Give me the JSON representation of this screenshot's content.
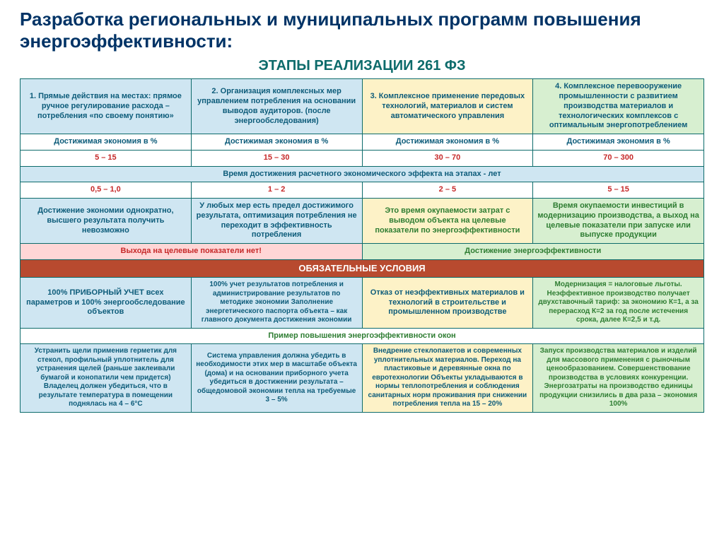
{
  "title": "Разработка региональных и муниципальных программ повышения энергоэффективности:",
  "subtitle": "ЭТАПЫ РЕАЛИЗАЦИИ 261 ФЗ",
  "stages": [
    "1. Прямые действия на местах: прямое ручное регулирование расхода – потребления «по своему понятию»",
    "2. Организация комплексных мер управлением потребления на основании выводов аудиторов. (после энергообследования)",
    "3. Комплексное применение передовых технологий, материалов и систем автоматического управления",
    "4. Комплексное перевооружение промышленности с развитием производства материалов и технологических комплексов с оптимальным энергопотреблением"
  ],
  "economy_label": "Достижимая экономия в %",
  "economy": [
    "5 – 15",
    "15 – 30",
    "30 – 70",
    "70 – 300"
  ],
  "time_header": "Время достижения расчетного экономического эффекта на этапах - лет",
  "time": [
    "0,5 – 1,0",
    "1 – 2",
    "2 – 5",
    "5 – 15"
  ],
  "desc": [
    "Достижение экономии однократно, высшего результата получить невозможно",
    "У любых мер есть предел достижимого результата, оптимизация потребления не переходит в эффективность потребления",
    "Это время окупаемости затрат с выводом объекта на целевые показатели по энергоэффективности",
    "Время окупаемости инвестиций в модернизацию производства, а выход на целевые показатели при запуске или выпуске продукции"
  ],
  "no_target": "Выхода на целевые показатели нет!",
  "target_ok": "Достижение энергоэффективности",
  "mandatory": "ОБЯЗАТЕЛЬНЫЕ УСЛОВИЯ",
  "conditions": [
    "100% ПРИБОРНЫЙ УЧЕТ всех параметров и 100% энергообследование объектов",
    "100% учет результатов потребления и администрирование результатов по методике экономии\nЗаполнение энергетического паспорта объекта – как главного документа достижения экономии",
    "Отказ от неэффективных материалов и технологий в строительстве и промышленном производстве",
    "Модернизация = налоговые льготы. Неэффективное производство получает двухставочный тариф: за экономию К=1, а за перерасход К=2 за год после истечения срока, далее К=2,5 и т.д."
  ],
  "example_header": "Пример повышения энергоэффективности окон",
  "example": [
    "Устранить щели применив герметик для стекол, профильный уплотнитель для устранения щелей (раньше заклеивали бумагой и конопатили чем придется) Владелец должен убедиться, что в результате температура в помещении поднялась на 4 – 6°С",
    "Система управления должна убедить в необходимости этих мер в масштабе объекта (дома) и на основании приборного учета убедиться в достижении результата – общедомовой экономии тепла на требуемые 3 – 5%",
    "Внедрение стеклопакетов и современных уплотнительных материалов. Переход на пластиковые и деревянные окна по евротехнологии Объекты укладываются в нормы теплопотребления и соблюдения санитарных норм проживания при снижении потребления тепла на 15 – 20%",
    "Запуск производства материалов и изделий для массового применения с рыночным ценообразованием. Совершенствование производства в условиях конкуренции. Энергозатраты на производство единицы продукции снизились в два раза – экономия 100%"
  ]
}
